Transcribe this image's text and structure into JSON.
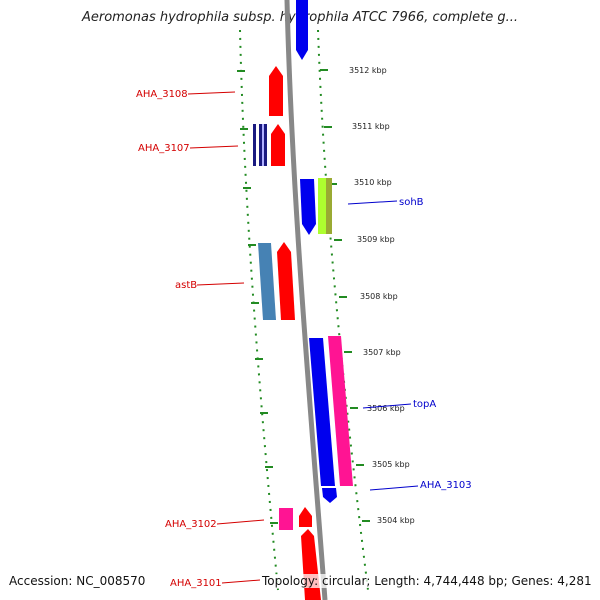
{
  "title": "Aeromonas hydrophila subsp. hydrophila ATCC 7966, complete g...",
  "footer": {
    "accession": "Accession: NC_008570",
    "topology": "Topology: circular; Length: 4,744,448 bp; Genes: 4,281"
  },
  "scale_labels": [
    "3512 kbp",
    "3511 kbp",
    "3510 kbp",
    "3509 kbp",
    "3508 kbp",
    "3507 kbp",
    "3506 kbp",
    "3505 kbp",
    "3504 kbp"
  ],
  "genes": [
    {
      "name": "AHA_3108",
      "color": "#d40000"
    },
    {
      "name": "AHA_3107",
      "color": "#d40000"
    },
    {
      "name": "sohB",
      "color": "#0000cc"
    },
    {
      "name": "astB",
      "color": "#d40000"
    },
    {
      "name": "topA",
      "color": "#0000cc"
    },
    {
      "name": "AHA_3103",
      "color": "#0000cc"
    },
    {
      "name": "AHA_3102",
      "color": "#d40000"
    },
    {
      "name": "AHA_3101",
      "color": "#d40000"
    }
  ],
  "colors": {
    "backbone": "#888888",
    "dotted_ring": "#228b22",
    "feature_red": "#ff0000",
    "feature_blue": "#0000ee",
    "feature_pink": "#ff1493",
    "feature_steelblue": "#4682b4",
    "feature_lime": "#adff2f"
  }
}
